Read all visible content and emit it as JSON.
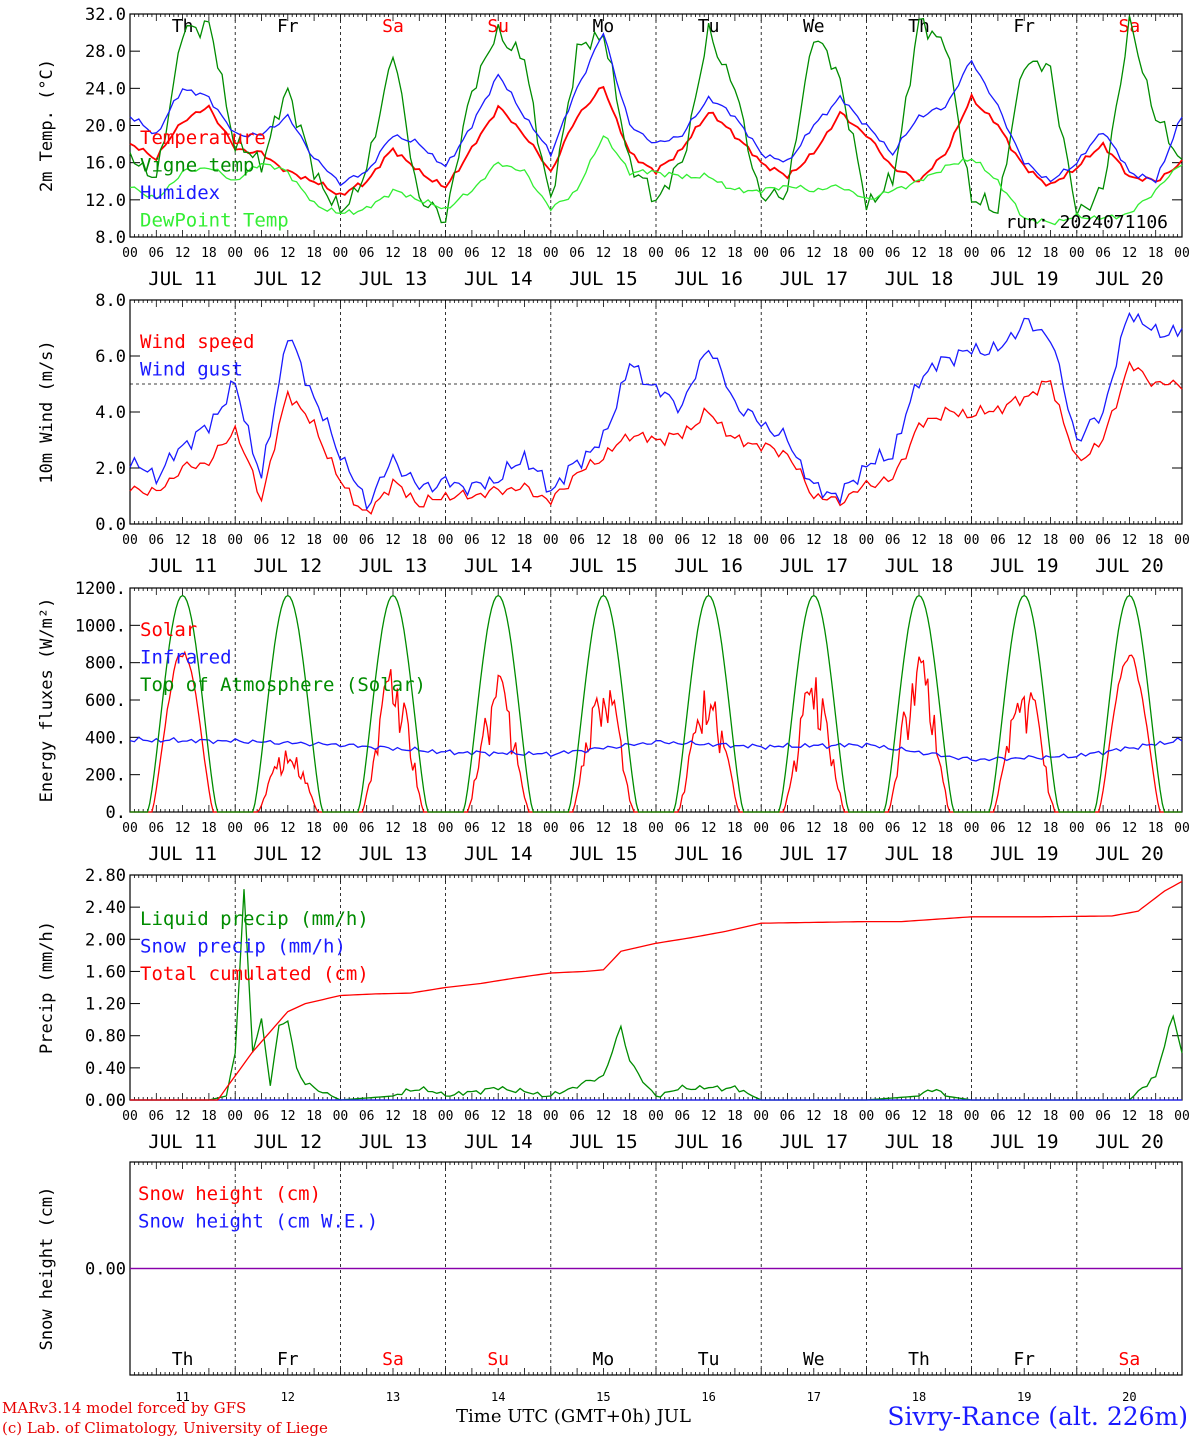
{
  "run_label": "run: 2024071106",
  "footer": {
    "model_line": "MARv3.14 model forced by GFS",
    "lab_line": "(c) Lab. of Climatology, University of Liege",
    "time_label": "Time UTC (GMT+0h) JUL",
    "station": "Sivry-Rance (alt. 226m)"
  },
  "days": [
    {
      "label": "JUL 11",
      "dow": "Th",
      "num": "11",
      "weekend": false
    },
    {
      "label": "JUL 12",
      "dow": "Fr",
      "num": "12",
      "weekend": false
    },
    {
      "label": "JUL 13",
      "dow": "Sa",
      "num": "13",
      "weekend": true
    },
    {
      "label": "JUL 14",
      "dow": "Su",
      "num": "14",
      "weekend": true
    },
    {
      "label": "JUL 15",
      "dow": "Mo",
      "num": "15",
      "weekend": false
    },
    {
      "label": "JUL 16",
      "dow": "Tu",
      "num": "16",
      "weekend": false
    },
    {
      "label": "JUL 17",
      "dow": "We",
      "num": "17",
      "weekend": false
    },
    {
      "label": "JUL 18",
      "dow": "Th",
      "num": "18",
      "weekend": false
    },
    {
      "label": "JUL 19",
      "dow": "Fr",
      "num": "19",
      "weekend": false
    },
    {
      "label": "JUL 20",
      "dow": "Sa",
      "num": "20",
      "weekend": true
    }
  ],
  "hour_ticks": [
    "00",
    "06",
    "12",
    "18"
  ],
  "colors": {
    "red": "#ff0000",
    "green": "#008c00",
    "blue": "#1a1aff",
    "lightgreen": "#33ee33",
    "weekend": "#ff0000",
    "purple": "#8800aa"
  },
  "chart_data": [
    {
      "type": "line",
      "ylabel": "2m Temp. (°C)",
      "ylim": [
        8,
        32
      ],
      "yticks": [
        "8.0",
        "12.0",
        "16.0",
        "20.0",
        "24.0",
        "28.0",
        "32.0"
      ],
      "x_unit": "hours since JUL 11 00 UTC",
      "series": [
        {
          "name": "Temperature",
          "color": "#ff0000",
          "x": [
            0,
            6,
            12,
            18,
            24,
            30,
            36,
            42,
            48,
            54,
            60,
            66,
            72,
            78,
            84,
            90,
            96,
            102,
            108,
            114,
            120,
            126,
            132,
            138,
            144,
            150,
            156,
            162,
            168,
            174,
            180,
            186,
            192,
            198,
            204,
            210,
            216,
            222,
            228,
            234,
            240
          ],
          "values": [
            18,
            16.5,
            20.5,
            22,
            17.5,
            17,
            15,
            14,
            12.5,
            14,
            17.5,
            15,
            13.3,
            17.5,
            22,
            19,
            15,
            21,
            24.2,
            17,
            15,
            17.5,
            21.5,
            19,
            16,
            14.5,
            17,
            21.3,
            19,
            15.5,
            14,
            17,
            23,
            20,
            15.5,
            13.5,
            15.5,
            18,
            14.5,
            14,
            16
          ]
        },
        {
          "name": "Vigne temp",
          "color": "#008c00",
          "x": [
            0,
            6,
            12,
            18,
            24,
            30,
            36,
            42,
            48,
            54,
            60,
            66,
            72,
            78,
            84,
            90,
            96,
            102,
            108,
            114,
            120,
            126,
            132,
            138,
            144,
            150,
            156,
            162,
            168,
            174,
            180,
            186,
            192,
            198,
            204,
            210,
            216,
            222,
            228,
            234,
            240
          ],
          "values": [
            17,
            14,
            30,
            31,
            18,
            16,
            24,
            15,
            10.5,
            15,
            28,
            12,
            10,
            24,
            30,
            27,
            11.5,
            28,
            30,
            16,
            12,
            16,
            30,
            24,
            12,
            13,
            30,
            25,
            11.5,
            14,
            31,
            29,
            12,
            11,
            27,
            26,
            10.5,
            13,
            31,
            21,
            16
          ]
        },
        {
          "name": "Humidex",
          "color": "#1a1aff",
          "x": [
            0,
            6,
            12,
            18,
            24,
            30,
            36,
            42,
            48,
            54,
            60,
            66,
            72,
            78,
            84,
            90,
            96,
            102,
            108,
            114,
            120,
            126,
            132,
            138,
            144,
            150,
            156,
            162,
            168,
            174,
            180,
            186,
            192,
            198,
            204,
            210,
            216,
            222,
            228,
            234,
            240
          ],
          "values": [
            21,
            19,
            24,
            23,
            19,
            19,
            21,
            16.5,
            13.8,
            15,
            19,
            18,
            15.5,
            20,
            25.5,
            21,
            17,
            24,
            30,
            20,
            18,
            19,
            23,
            21,
            17,
            16,
            20,
            23,
            20,
            17,
            21,
            22,
            27,
            22,
            16,
            14,
            16,
            19.5,
            15,
            14,
            21
          ]
        },
        {
          "name": "DewPoint Temp",
          "color": "#33ee33",
          "x": [
            0,
            6,
            12,
            18,
            24,
            30,
            36,
            42,
            48,
            54,
            60,
            66,
            72,
            78,
            84,
            90,
            96,
            102,
            108,
            114,
            120,
            126,
            132,
            138,
            144,
            150,
            156,
            162,
            168,
            174,
            180,
            186,
            192,
            198,
            204,
            210,
            216,
            222,
            228,
            234,
            240
          ],
          "values": [
            13.5,
            12,
            15,
            15.5,
            14,
            16,
            15,
            11.5,
            10.5,
            11,
            13,
            12,
            11,
            13,
            16,
            15,
            11,
            13,
            19,
            15,
            15,
            14.5,
            14.5,
            13,
            13,
            13.5,
            13,
            13.5,
            12,
            13,
            14,
            15.5,
            16.5,
            14,
            10,
            9.5,
            10.2,
            10,
            10.5,
            13,
            16
          ]
        }
      ]
    },
    {
      "type": "line",
      "ylabel": "10m Wind (m/s)",
      "ylim": [
        0,
        8
      ],
      "yticks": [
        "0.0",
        "2.0",
        "4.0",
        "6.0",
        "8.0"
      ],
      "reference_line": 5.0,
      "series": [
        {
          "name": "Wind speed",
          "color": "#ff0000",
          "x": [
            0,
            6,
            12,
            18,
            24,
            30,
            36,
            42,
            48,
            54,
            60,
            66,
            72,
            78,
            84,
            90,
            96,
            102,
            108,
            114,
            120,
            126,
            132,
            138,
            144,
            150,
            156,
            162,
            168,
            174,
            180,
            186,
            192,
            198,
            204,
            210,
            216,
            222,
            228,
            234,
            240
          ],
          "values": [
            1.3,
            1.1,
            2.0,
            2.2,
            3.4,
            0.9,
            4.7,
            3.5,
            1.5,
            0.3,
            1.5,
            0.7,
            1.0,
            1.0,
            1.2,
            1.3,
            0.8,
            1.8,
            2.4,
            3.2,
            3.0,
            3.2,
            4.0,
            3.0,
            2.8,
            2.5,
            1.0,
            0.8,
            1.4,
            1.6,
            3.5,
            4.0,
            3.9,
            4.1,
            4.5,
            5.1,
            2.2,
            3.0,
            5.7,
            5.0,
            5.0
          ]
        },
        {
          "name": "Wind gust",
          "color": "#1a1aff",
          "x": [
            0,
            6,
            12,
            18,
            24,
            30,
            36,
            42,
            48,
            54,
            60,
            66,
            72,
            78,
            84,
            90,
            96,
            102,
            108,
            114,
            120,
            126,
            132,
            138,
            144,
            150,
            156,
            162,
            168,
            174,
            180,
            186,
            192,
            198,
            204,
            210,
            216,
            222,
            228,
            234,
            240
          ],
          "values": [
            2.2,
            1.7,
            2.8,
            3.5,
            5.0,
            1.6,
            6.8,
            4.5,
            2.5,
            0.7,
            2.3,
            1.3,
            1.5,
            1.3,
            1.6,
            2.4,
            1.2,
            2.2,
            3.0,
            5.7,
            4.8,
            4.2,
            6.4,
            4.3,
            3.6,
            3.0,
            1.3,
            1.0,
            2.1,
            2.5,
            5.2,
            5.9,
            6.2,
            6.2,
            7.2,
            6.7,
            3.0,
            4.0,
            7.6,
            6.8,
            6.9
          ]
        }
      ]
    },
    {
      "type": "line",
      "ylabel": "Energy fluxes (W/m²)",
      "ylim": [
        0,
        1200
      ],
      "yticks": [
        "0.",
        "200.",
        "400.",
        "600.",
        "800.",
        "1000.",
        "1200."
      ],
      "series": [
        {
          "name": "Solar",
          "color": "#ff0000",
          "peaks": [
            870,
            350,
            780,
            750,
            740,
            680,
            730,
            850,
            760,
            850
          ]
        },
        {
          "name": "Infrared",
          "color": "#1a1aff",
          "x": [
            0,
            24,
            48,
            72,
            96,
            120,
            144,
            168,
            192,
            216,
            240
          ],
          "values": [
            385,
            380,
            360,
            320,
            310,
            375,
            350,
            360,
            280,
            300,
            385
          ]
        },
        {
          "name": "Top of Atmosphere (Solar)",
          "color": "#008c00",
          "peak": 1160
        }
      ]
    },
    {
      "type": "line",
      "ylabel": "Precip (mm/h)",
      "ylim": [
        0,
        2.8
      ],
      "yticks": [
        "0.00",
        "0.40",
        "0.80",
        "1.20",
        "1.60",
        "2.00",
        "2.40",
        "2.80"
      ],
      "series": [
        {
          "name": "Liquid precip (mm/h)",
          "color": "#008c00",
          "x": [
            0,
            18,
            22,
            24,
            26,
            28,
            30,
            32,
            34,
            36,
            38,
            40,
            44,
            48,
            60,
            66,
            72,
            84,
            96,
            108,
            112,
            114,
            118,
            120,
            126,
            132,
            138,
            144,
            168,
            180,
            184,
            186,
            192,
            216,
            228,
            234,
            238,
            240
          ],
          "values": [
            0,
            0,
            0.05,
            0.6,
            2.6,
            0.6,
            1.0,
            0.2,
            0.9,
            1.0,
            0.4,
            0.2,
            0.1,
            0,
            0.05,
            0.15,
            0.05,
            0.15,
            0.05,
            0.3,
            0.9,
            0.5,
            0.15,
            0.05,
            0.15,
            0.15,
            0.15,
            0,
            0,
            0.05,
            0.15,
            0.05,
            0,
            0,
            0,
            0.3,
            1.05,
            0.6
          ]
        },
        {
          "name": "Snow precip (mm/h)",
          "color": "#1a1aff",
          "x": [
            0,
            240
          ],
          "values": [
            0,
            0
          ]
        },
        {
          "name": "Total cumulated (cm)",
          "color": "#ff0000",
          "x": [
            0,
            20,
            24,
            28,
            32,
            36,
            40,
            48,
            56,
            64,
            72,
            80,
            88,
            96,
            104,
            108,
            112,
            120,
            128,
            136,
            144,
            156,
            168,
            176,
            184,
            192,
            208,
            224,
            230,
            236,
            240
          ],
          "values": [
            0,
            0,
            0.3,
            0.6,
            0.85,
            1.1,
            1.2,
            1.3,
            1.32,
            1.33,
            1.4,
            1.45,
            1.52,
            1.58,
            1.6,
            1.62,
            1.85,
            1.95,
            2.02,
            2.1,
            2.2,
            2.21,
            2.22,
            2.22,
            2.25,
            2.28,
            2.28,
            2.29,
            2.35,
            2.6,
            2.72
          ]
        }
      ]
    },
    {
      "type": "line",
      "ylabel": "Snow height (cm)",
      "ylim": [
        -1,
        1
      ],
      "yticks": [
        "0.00"
      ],
      "series": [
        {
          "name": "Snow height (cm)",
          "color": "#ff0000",
          "x": [
            0,
            240
          ],
          "values": [
            0,
            0
          ]
        },
        {
          "name": "Snow height (cm W.E.)",
          "color": "#1a1aff",
          "x": [
            0,
            240
          ],
          "values": [
            0,
            0
          ]
        }
      ]
    }
  ]
}
